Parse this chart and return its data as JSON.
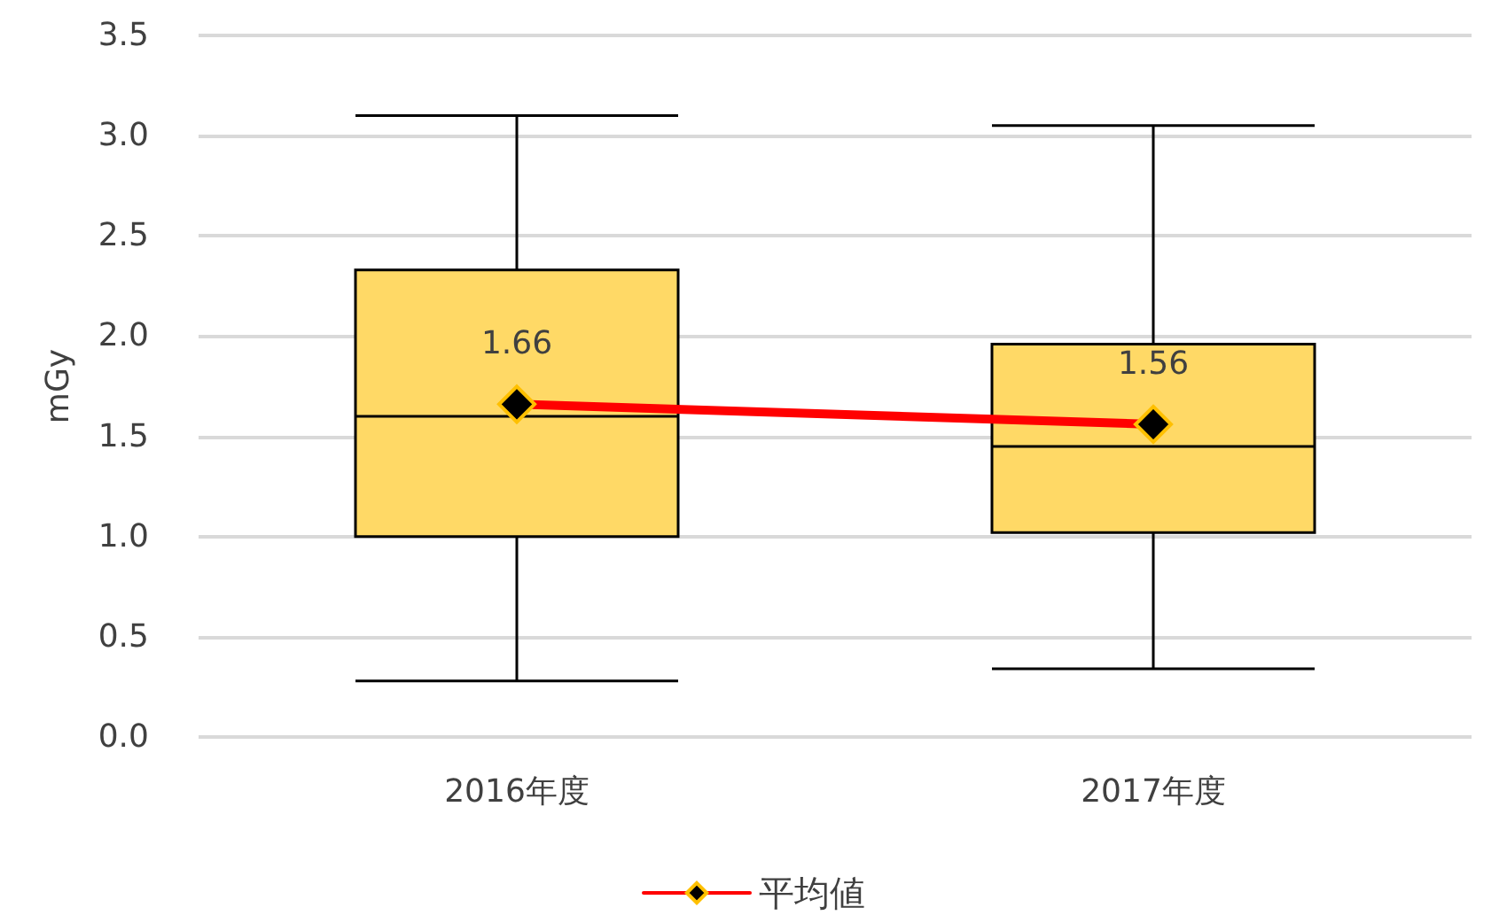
{
  "chart_data": {
    "type": "box",
    "ylabel": "mGy",
    "categories": [
      "2016年度",
      "2017年度"
    ],
    "ylim": [
      0,
      3.5
    ],
    "yticks": [
      {
        "value": 0,
        "label": "0.0"
      },
      {
        "value": 0.5,
        "label": "0.5"
      },
      {
        "value": 1,
        "label": "1.0"
      },
      {
        "value": 1.5,
        "label": "1.5"
      },
      {
        "value": 2,
        "label": "2.0"
      },
      {
        "value": 2.5,
        "label": "2.5"
      },
      {
        "value": 3,
        "label": "3.0"
      },
      {
        "value": 3.5,
        "label": "3.5"
      }
    ],
    "grid": "y",
    "legend": "bottom",
    "series": [
      {
        "color": "#ffd966",
        "boxes": [
          {
            "low": 0.28,
            "q1": 1.0,
            "median": 1.6,
            "q3": 2.33,
            "high": 3.1
          },
          {
            "low": 0.34,
            "q1": 1.02,
            "median": 1.45,
            "q3": 1.96,
            "high": 3.05
          }
        ]
      },
      {
        "type": "line",
        "name": "平均値",
        "color": "#ff0000",
        "values": [
          1.66,
          1.56
        ],
        "marker": "diamond",
        "value_labels": [
          "1.66",
          "1.56"
        ]
      }
    ]
  }
}
